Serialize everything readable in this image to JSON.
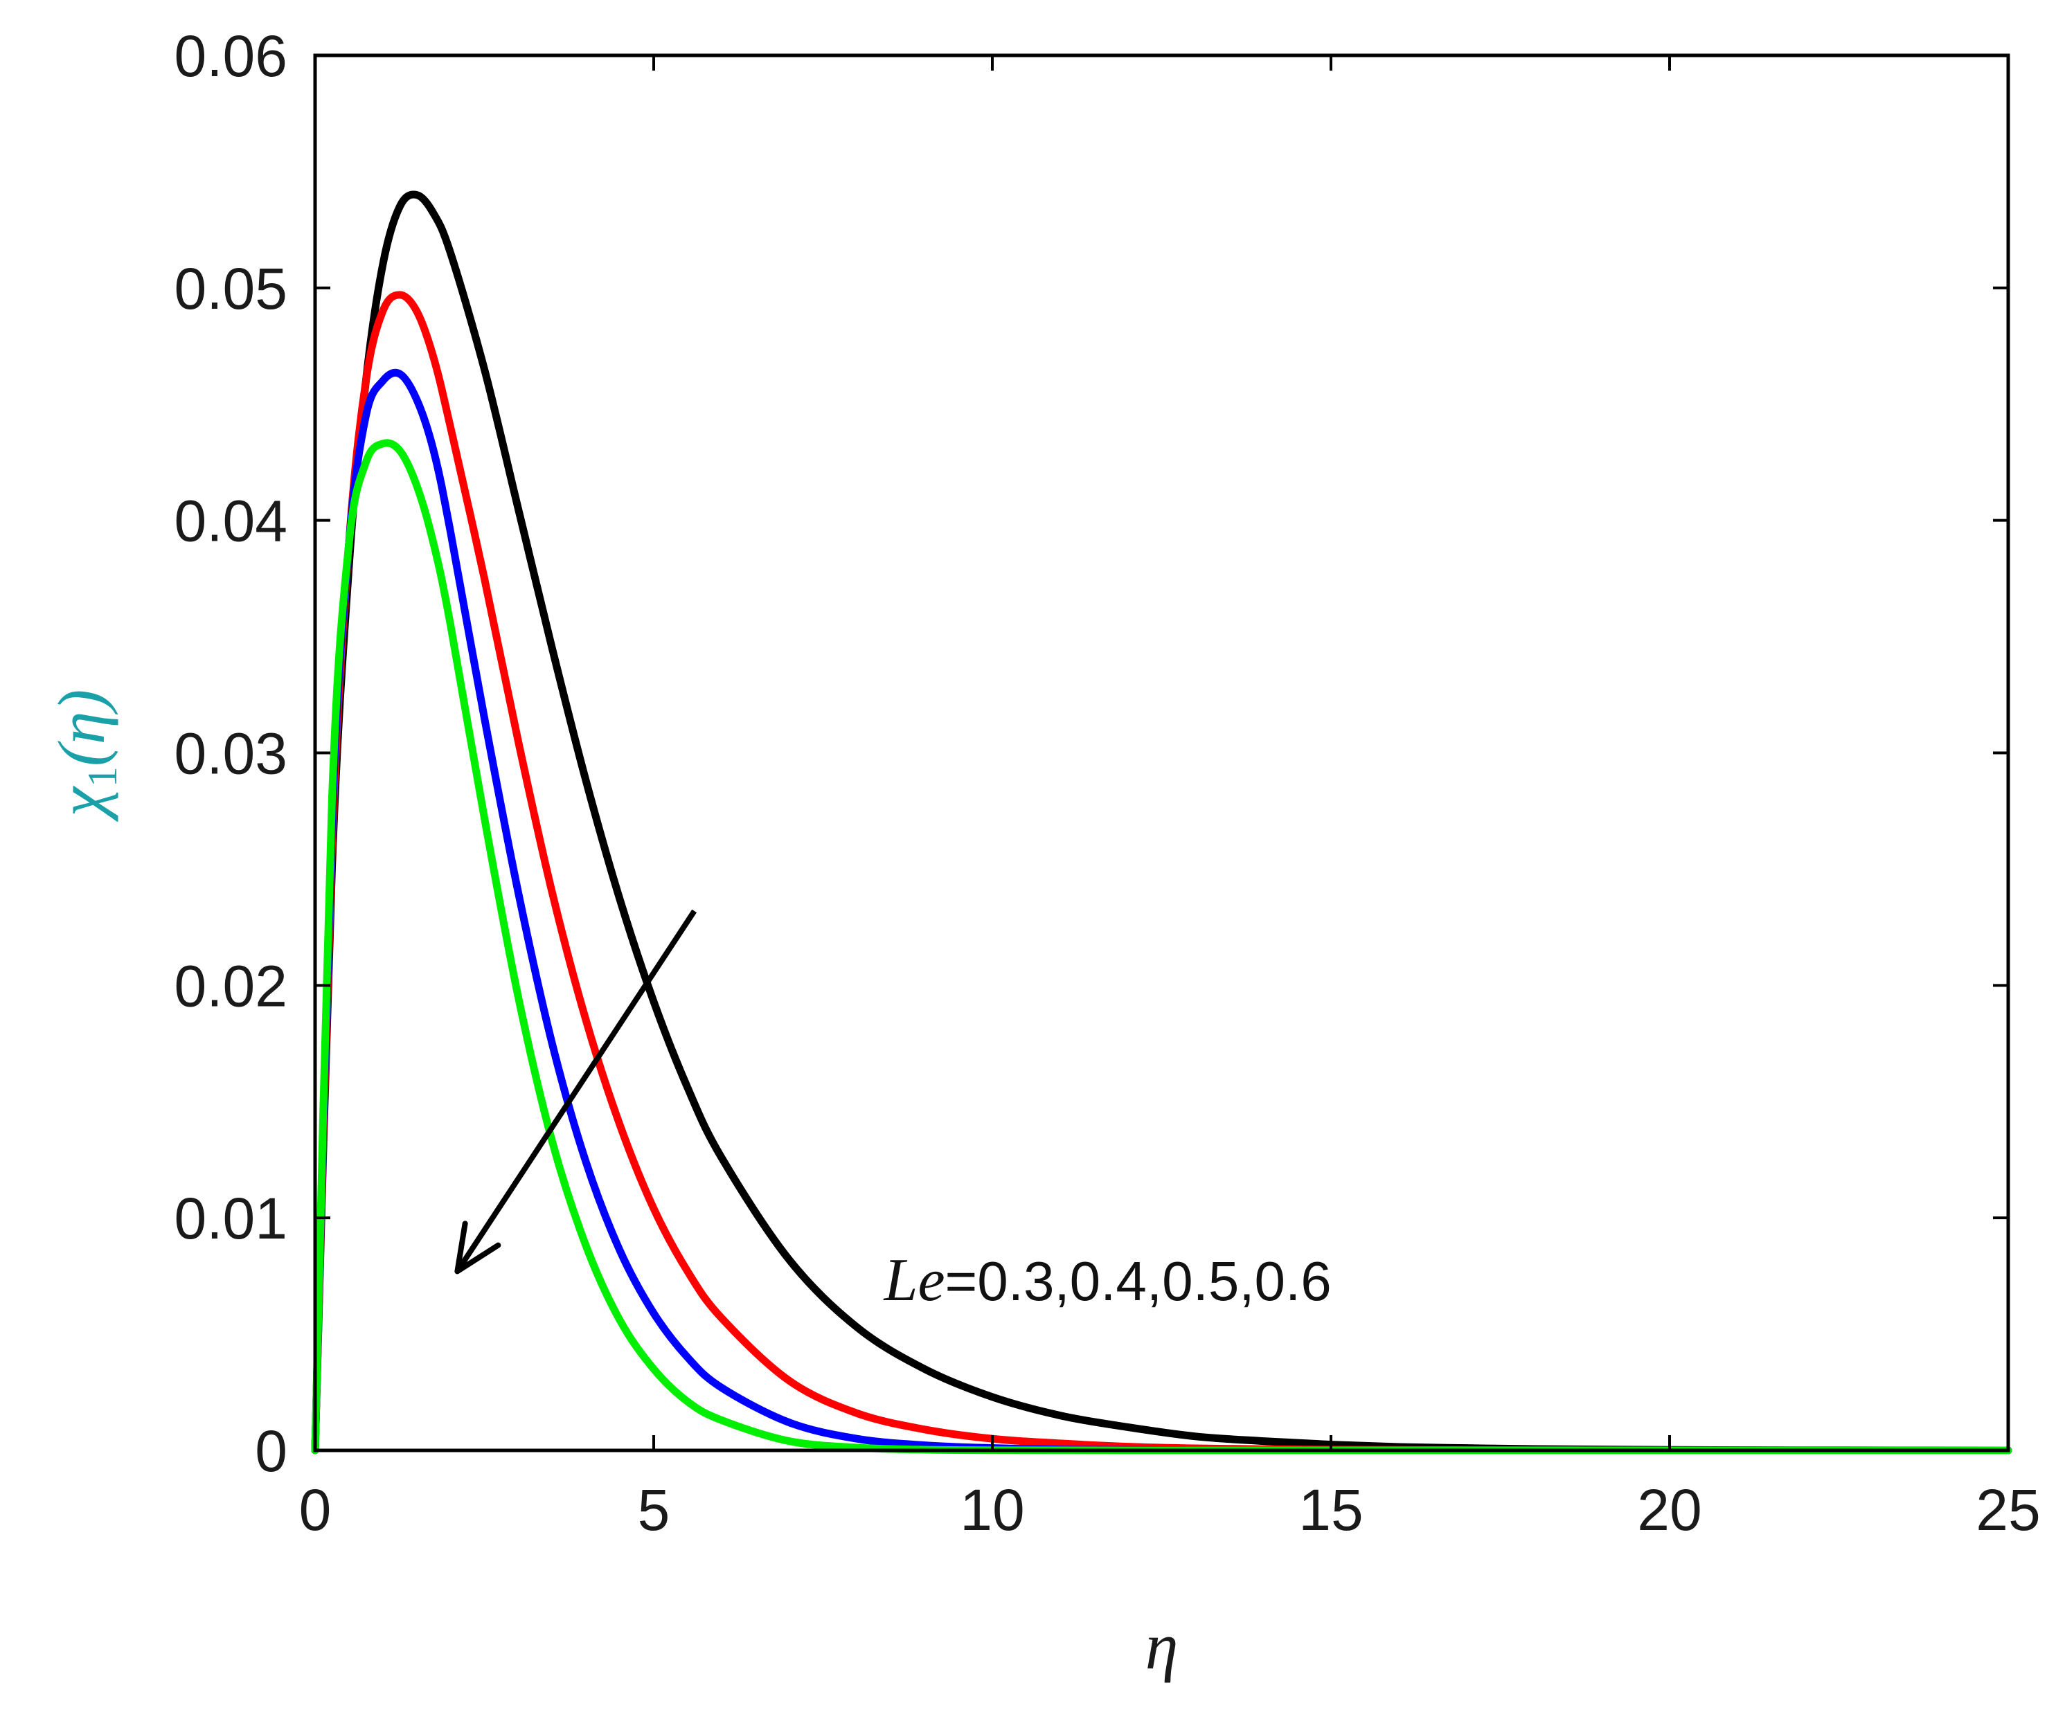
{
  "chart_data": {
    "type": "line",
    "xlabel": "η",
    "ylabel": "χ1(η)",
    "ylabel_main": "χ",
    "ylabel_sub": "1",
    "ylabel_arg": "(η)",
    "xlim": [
      0,
      25
    ],
    "ylim": [
      0,
      0.06
    ],
    "xticks": [
      0,
      5,
      10,
      15,
      20,
      25
    ],
    "xtick_labels": [
      "0",
      "5",
      "10",
      "15",
      "20",
      "25"
    ],
    "yticks": [
      0,
      0.01,
      0.02,
      0.03,
      0.04,
      0.05,
      0.06
    ],
    "ytick_labels": [
      "0",
      "0.01",
      "0.02",
      "0.03",
      "0.04",
      "0.05",
      "0.06"
    ],
    "grid": false,
    "ylabel_color": "#1aa0a8",
    "series": [
      {
        "color": "#000000",
        "x": [
          0,
          0.25,
          0.5,
          0.75,
          1.0,
          1.25,
          1.5,
          1.75,
          2.0,
          2.5,
          3.0,
          3.5,
          4.0,
          4.5,
          5.0,
          5.5,
          6.0,
          7.0,
          8.0,
          9.0,
          10.0,
          11.0,
          12.0,
          13.0,
          14.0,
          15.0,
          16.0,
          17.0,
          18.0,
          20.0,
          22.0,
          25.0
        ],
        "y": [
          0,
          0.025,
          0.038,
          0.046,
          0.051,
          0.0535,
          0.054,
          0.0532,
          0.0515,
          0.0465,
          0.0405,
          0.0345,
          0.0288,
          0.0237,
          0.0193,
          0.0156,
          0.0126,
          0.0082,
          0.0053,
          0.0035,
          0.0023,
          0.0015,
          0.001,
          0.0006,
          0.0004,
          0.00025,
          0.00015,
          0.0001,
          6e-05,
          2e-05,
          1e-05,
          0
        ]
      },
      {
        "color": "#ff0000",
        "x": [
          0,
          0.25,
          0.5,
          0.75,
          1.0,
          1.25,
          1.5,
          1.75,
          2.0,
          2.5,
          3.0,
          3.5,
          4.0,
          4.5,
          5.0,
          5.5,
          6.0,
          7.0,
          8.0,
          9.0,
          10.0,
          11.0,
          12.0,
          13.0,
          14.0,
          15.0,
          16.0,
          18.0,
          20.0,
          25.0
        ],
        "y": [
          0,
          0.026,
          0.039,
          0.046,
          0.049,
          0.0497,
          0.049,
          0.047,
          0.044,
          0.0375,
          0.0305,
          0.024,
          0.0185,
          0.014,
          0.0104,
          0.0077,
          0.0057,
          0.003,
          0.0016,
          0.0009,
          0.0005,
          0.0003,
          0.00016,
          9e-05,
          5e-05,
          3e-05,
          2e-05,
          1e-05,
          0,
          0
        ]
      },
      {
        "color": "#0000ff",
        "x": [
          0,
          0.25,
          0.5,
          0.75,
          1.0,
          1.25,
          1.5,
          1.75,
          2.0,
          2.5,
          3.0,
          3.5,
          4.0,
          4.5,
          5.0,
          5.5,
          6.0,
          7.0,
          8.0,
          9.0,
          10.0,
          11.0,
          12.0,
          14.0,
          16.0,
          20.0,
          25.0
        ],
        "y": [
          0,
          0.027,
          0.039,
          0.0445,
          0.046,
          0.0463,
          0.0452,
          0.043,
          0.0395,
          0.0315,
          0.024,
          0.0175,
          0.0124,
          0.0086,
          0.0059,
          0.004,
          0.0027,
          0.0012,
          0.0005,
          0.00022,
          0.0001,
          4e-05,
          2e-05,
          0,
          0,
          0,
          0
        ]
      },
      {
        "color": "#00ee00",
        "x": [
          0,
          0.25,
          0.5,
          0.75,
          1.0,
          1.25,
          1.5,
          1.75,
          2.0,
          2.5,
          3.0,
          3.5,
          4.0,
          4.5,
          5.0,
          5.5,
          6.0,
          7.0,
          8.0,
          9.0,
          10.0,
          12.0,
          15.0,
          20.0,
          25.0
        ],
        "y": [
          0,
          0.028,
          0.039,
          0.0425,
          0.0433,
          0.043,
          0.0415,
          0.039,
          0.0355,
          0.0272,
          0.0195,
          0.0133,
          0.0088,
          0.0056,
          0.0035,
          0.0021,
          0.0013,
          0.0004,
          0.00012,
          3e-05,
          1e-05,
          0,
          0,
          0,
          0
        ]
      }
    ],
    "annotations": [
      {
        "text_italic": "Le",
        "text": "=0.3,0.4,0.5,0.6",
        "x": 8.4,
        "y": 0.0073
      }
    ],
    "arrow": {
      "from": [
        5.6,
        0.0232
      ],
      "to": [
        2.1,
        0.0077
      ],
      "color": "#000000"
    }
  }
}
